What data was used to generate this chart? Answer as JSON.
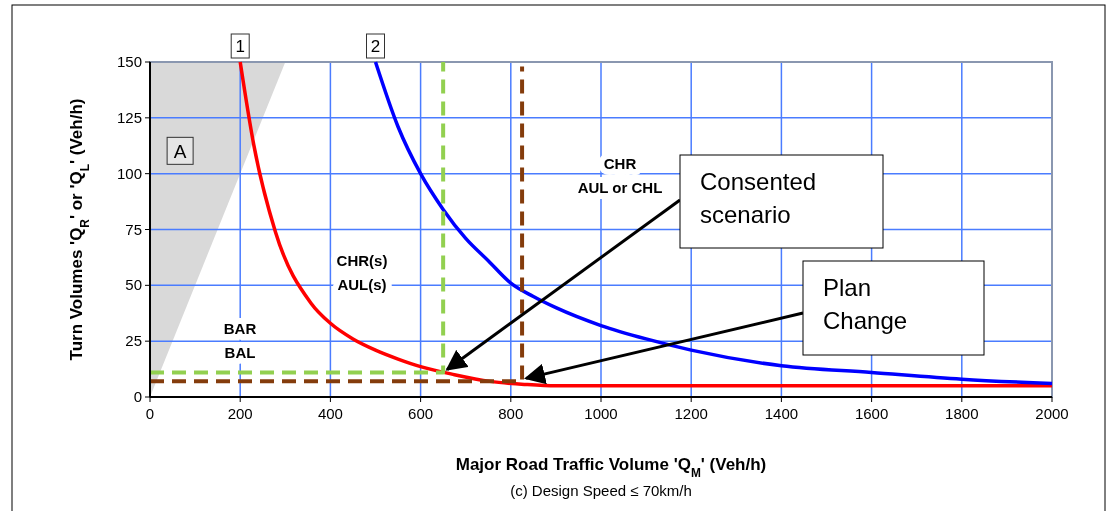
{
  "chart_data": {
    "type": "line",
    "xlabel": "Major Road Traffic Volume 'Q$_{M}$' (Veh/h)",
    "ylabel": "Turn Volumes 'Q$_{R}$' or 'Q$_{L}$' (Veh/h)",
    "xlim": [
      0,
      2000
    ],
    "xticks": [
      0,
      200,
      400,
      600,
      800,
      1000,
      1200,
      1400,
      1600,
      1800,
      2000
    ],
    "ylim": [
      0,
      150
    ],
    "yticks": [
      0,
      25,
      50,
      75,
      100,
      125,
      150
    ],
    "grid": true,
    "series": [
      {
        "type": "area",
        "color": "#d9d9d9",
        "x": [
          0,
          300
        ],
        "values": [
          0,
          150
        ]
      },
      {
        "color": "#ff0000",
        "x": [
          200,
          230,
          278,
          357,
          400,
          450,
          500,
          550,
          600,
          675,
          754,
          833,
          900,
          1000,
          1200,
          1600,
          2000
        ],
        "values": [
          150,
          113,
          74,
          42,
          33,
          26,
          21,
          17,
          13.6,
          10,
          7,
          5.6,
          5,
          5,
          5,
          5,
          5
        ]
      },
      {
        "color": "#0000ff",
        "x": [
          500,
          550,
          600,
          650,
          700,
          750,
          800,
          850,
          900,
          1000,
          1100,
          1200,
          1400,
          1600,
          1800,
          2000
        ],
        "values": [
          150,
          121,
          100,
          84,
          71,
          61,
          51,
          45,
          40,
          32,
          26,
          21,
          14,
          11,
          8,
          6
        ]
      },
      {
        "color": "#92d050",
        "line_style": "dashed",
        "x": [
          0,
          650,
          650
        ],
        "values": [
          11,
          11,
          150
        ]
      },
      {
        "color": "#843c0c",
        "line_style": "dashed",
        "x": [
          0,
          825,
          825
        ],
        "values": [
          7,
          7,
          148
        ]
      }
    ],
    "annotations": [
      {
        "text": "1",
        "x": 200,
        "y": 150
      },
      {
        "text": "2",
        "x": 500,
        "y": 150
      },
      {
        "text": "A",
        "x": 69,
        "y": 110
      },
      "BAR\nBAL",
      "CHR(s)\nAUL(s)",
      "CHR\nAUL or CHL",
      {
        "text": "Consented\nscenario",
        "x": 650,
        "y": 11
      },
      {
        "text": "Plan\nChange",
        "x": 825,
        "y": 7
      },
      "(c) Design Speed ≤ 70km/h"
    ]
  }
}
